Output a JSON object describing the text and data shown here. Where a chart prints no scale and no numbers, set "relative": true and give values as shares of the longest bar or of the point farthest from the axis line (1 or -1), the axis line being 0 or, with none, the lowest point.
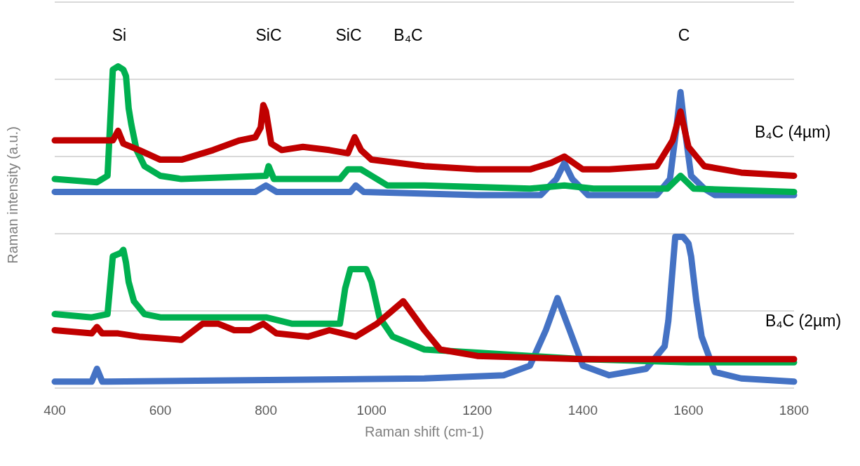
{
  "chart_data": {
    "type": "line",
    "relative": true,
    "xlabel": "Raman shift (cm-1)",
    "ylabel": "Raman intensity (a.u.)",
    "xlim": [
      400,
      1800
    ],
    "xticks": [
      400,
      600,
      800,
      1000,
      1200,
      1400,
      1600,
      1800
    ],
    "grid": "y",
    "marker": "none",
    "line_style": "solid",
    "annotations": [
      "Si",
      "SiC",
      "SiC",
      "B₄C",
      "C",
      "B₄C (4µm)",
      "B₄C (2µm)"
    ],
    "series": [
      {
        "color": "#4472c4",
        "x": [
          400,
          780,
          800,
          820,
          960,
          970,
          985,
          1200,
          1320,
          1350,
          1365,
          1380,
          1410,
          1540,
          1565,
          1578,
          1585,
          1592,
          1605,
          1630,
          1650,
          1800
        ],
        "values": [
          0.61,
          0.61,
          0.63,
          0.61,
          0.61,
          0.63,
          0.61,
          0.6,
          0.6,
          0.65,
          0.7,
          0.65,
          0.6,
          0.6,
          0.65,
          0.82,
          0.92,
          0.82,
          0.66,
          0.62,
          0.6,
          0.6
        ]
      },
      {
        "color": "#00b050",
        "x": [
          400,
          480,
          500,
          510,
          520,
          530,
          535,
          540,
          545,
          555,
          570,
          600,
          640,
          800,
          805,
          815,
          940,
          955,
          980,
          1000,
          1030,
          1100,
          1300,
          1365,
          1420,
          1560,
          1585,
          1610,
          1800
        ],
        "values": [
          0.65,
          0.64,
          0.66,
          0.99,
          1.0,
          0.99,
          0.97,
          0.87,
          0.82,
          0.74,
          0.69,
          0.66,
          0.65,
          0.66,
          0.69,
          0.65,
          0.65,
          0.68,
          0.68,
          0.66,
          0.63,
          0.63,
          0.62,
          0.63,
          0.62,
          0.62,
          0.66,
          0.62,
          0.61
        ]
      },
      {
        "color": "#c00000",
        "x": [
          400,
          450,
          510,
          520,
          530,
          560,
          600,
          640,
          700,
          750,
          780,
          790,
          795,
          800,
          810,
          830,
          870,
          920,
          955,
          968,
          980,
          1000,
          1100,
          1200,
          1300,
          1340,
          1365,
          1400,
          1450,
          1540,
          1570,
          1585,
          1600,
          1630,
          1700,
          1800
        ],
        "values": [
          0.77,
          0.77,
          0.77,
          0.8,
          0.76,
          0.74,
          0.71,
          0.71,
          0.74,
          0.77,
          0.78,
          0.81,
          0.88,
          0.86,
          0.76,
          0.74,
          0.75,
          0.74,
          0.73,
          0.78,
          0.74,
          0.71,
          0.69,
          0.68,
          0.68,
          0.7,
          0.72,
          0.68,
          0.68,
          0.69,
          0.77,
          0.86,
          0.75,
          0.69,
          0.67,
          0.66
        ]
      },
      {
        "color": "#4472c4",
        "x": [
          400,
          470,
          480,
          490,
          500,
          1100,
          1250,
          1300,
          1330,
          1352,
          1375,
          1400,
          1450,
          1520,
          1555,
          1562,
          1575,
          1590,
          1600,
          1605,
          1615,
          1625,
          1650,
          1700,
          1800
        ],
        "values": [
          0.02,
          0.02,
          0.06,
          0.02,
          0.02,
          0.03,
          0.04,
          0.07,
          0.18,
          0.28,
          0.18,
          0.07,
          0.04,
          0.06,
          0.13,
          0.21,
          0.47,
          0.47,
          0.45,
          0.41,
          0.27,
          0.16,
          0.05,
          0.03,
          0.02
        ]
      },
      {
        "color": "#00b050",
        "x": [
          400,
          470,
          500,
          510,
          525,
          530,
          535,
          540,
          550,
          570,
          600,
          800,
          850,
          940,
          950,
          960,
          990,
          1000,
          1015,
          1040,
          1100,
          1200,
          1400,
          1600,
          1800
        ],
        "values": [
          0.23,
          0.22,
          0.23,
          0.41,
          0.42,
          0.43,
          0.39,
          0.33,
          0.27,
          0.23,
          0.22,
          0.22,
          0.2,
          0.2,
          0.31,
          0.37,
          0.37,
          0.33,
          0.22,
          0.16,
          0.12,
          0.11,
          0.09,
          0.08,
          0.08
        ]
      },
      {
        "color": "#c00000",
        "x": [
          400,
          470,
          480,
          490,
          520,
          560,
          640,
          680,
          710,
          740,
          770,
          795,
          820,
          880,
          920,
          970,
          1010,
          1060,
          1100,
          1130,
          1200,
          1400,
          1800
        ],
        "values": [
          0.18,
          0.17,
          0.19,
          0.17,
          0.17,
          0.16,
          0.15,
          0.2,
          0.2,
          0.18,
          0.18,
          0.2,
          0.17,
          0.16,
          0.18,
          0.16,
          0.2,
          0.27,
          0.18,
          0.12,
          0.1,
          0.09,
          0.09
        ]
      }
    ]
  }
}
